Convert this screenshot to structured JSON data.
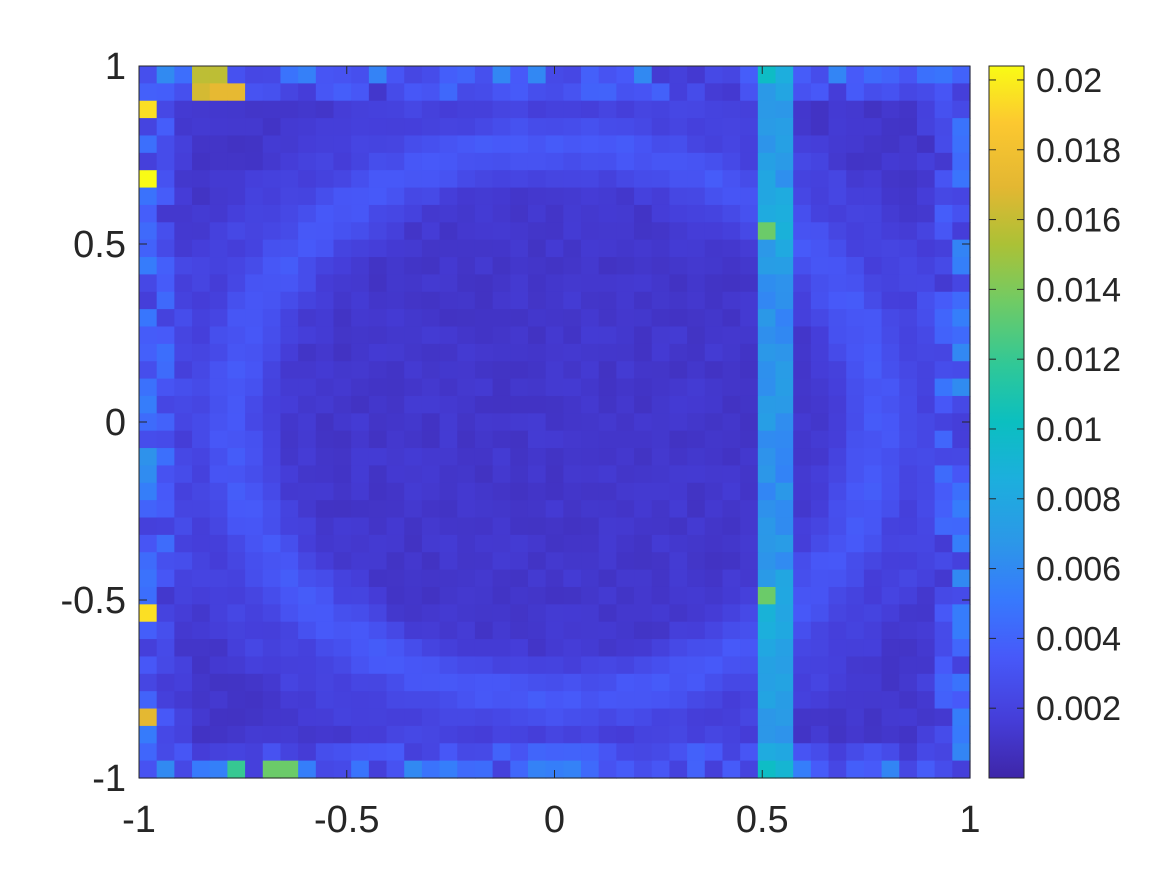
{
  "chart_data": {
    "type": "heatmap",
    "title": "",
    "xlabel": "",
    "ylabel": "",
    "xlim": [
      -1,
      1
    ],
    "ylim": [
      -1,
      1
    ],
    "grid_cells": [
      47,
      41
    ],
    "x_ticks": [
      {
        "value": -1,
        "label": "-1"
      },
      {
        "value": -0.5,
        "label": "-0.5"
      },
      {
        "value": 0,
        "label": "0"
      },
      {
        "value": 0.5,
        "label": "0.5"
      },
      {
        "value": 1,
        "label": "1"
      }
    ],
    "y_ticks": [
      {
        "value": 1,
        "label": "1"
      },
      {
        "value": 0.5,
        "label": "0.5"
      },
      {
        "value": 0,
        "label": "0"
      },
      {
        "value": -0.5,
        "label": "-0.5"
      },
      {
        "value": -1,
        "label": "-1"
      }
    ],
    "colorbar": {
      "colormap": "parula",
      "clim": [
        0,
        0.0204
      ],
      "ticks": [
        {
          "value": 0.002,
          "label": "0.002"
        },
        {
          "value": 0.004,
          "label": "0.004"
        },
        {
          "value": 0.006,
          "label": "0.006"
        },
        {
          "value": 0.008,
          "label": "0.008"
        },
        {
          "value": 0.01,
          "label": "0.01"
        },
        {
          "value": 0.012,
          "label": "0.012"
        },
        {
          "value": 0.014,
          "label": "0.014"
        },
        {
          "value": 0.016,
          "label": "0.016"
        },
        {
          "value": 0.018,
          "label": "0.018"
        },
        {
          "value": 0.02,
          "label": "0.02"
        }
      ]
    },
    "field_description": "error field approx: background ~0.001; circular ring of radius ~0.75 at ~0.003; vertical band at x~0.52 at ~0.006; hot spots near edges",
    "hot_spots": [
      {
        "x": -0.98,
        "y": 0.87,
        "value": 0.0195
      },
      {
        "x": -0.98,
        "y": 0.67,
        "value": 0.0204
      },
      {
        "x": -0.98,
        "y": -0.54,
        "value": 0.0195
      },
      {
        "x": -0.98,
        "y": -0.83,
        "value": 0.017
      },
      {
        "x": -0.83,
        "y": 0.91,
        "value": 0.0165
      },
      {
        "x": -0.79,
        "y": 0.91,
        "value": 0.0172
      },
      {
        "x": -0.83,
        "y": 0.95,
        "value": 0.0158
      },
      {
        "x": 0.5,
        "y": 0.52,
        "value": 0.0135
      },
      {
        "x": 0.5,
        "y": -0.5,
        "value": 0.0135
      },
      {
        "x": -0.78,
        "y": -0.97,
        "value": 0.012
      },
      {
        "x": -0.66,
        "y": -0.97,
        "value": 0.0135
      }
    ]
  }
}
